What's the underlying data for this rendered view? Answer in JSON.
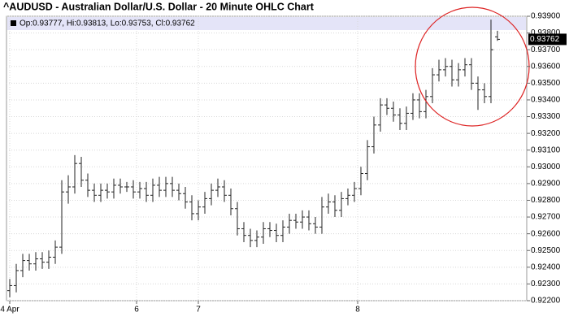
{
  "chart_data": {
    "type": "ohlc",
    "title": "^AUDUSD - Australian Dollar/U.S. Dollar - 20 Minute OHLC Chart",
    "info": "Op:0.93777, Hi:0.93813, Lo:0.93753, Cl:0.93762",
    "color": "#222222",
    "grid": true,
    "ylim": [
      0.922,
      0.939
    ],
    "yticks": [
      {
        "value": 0.922,
        "label": "0.92200"
      },
      {
        "value": 0.923,
        "label": "0.92300"
      },
      {
        "value": 0.924,
        "label": "0.92400"
      },
      {
        "value": 0.925,
        "label": "0.92500"
      },
      {
        "value": 0.926,
        "label": "0.92600"
      },
      {
        "value": 0.927,
        "label": "0.92700"
      },
      {
        "value": 0.928,
        "label": "0.92800"
      },
      {
        "value": 0.929,
        "label": "0.92900"
      },
      {
        "value": 0.93,
        "label": "0.93000"
      },
      {
        "value": 0.931,
        "label": "0.93100"
      },
      {
        "value": 0.932,
        "label": "0.93200"
      },
      {
        "value": 0.933,
        "label": "0.93300"
      },
      {
        "value": 0.934,
        "label": "0.93400"
      },
      {
        "value": 0.935,
        "label": "0.93500"
      },
      {
        "value": 0.936,
        "label": "0.93600"
      },
      {
        "value": 0.937,
        "label": "0.93700"
      },
      {
        "value": 0.938,
        "label": "0.93800"
      },
      {
        "value": 0.939,
        "label": "0.93900"
      }
    ],
    "xlim": [
      -0.5,
      79.5
    ],
    "xticks": [
      {
        "value": 0,
        "label": "4 Apr"
      },
      {
        "value": 19.5,
        "label": "6"
      },
      {
        "value": 29,
        "label": "7"
      },
      {
        "value": 53.5,
        "label": "8"
      }
    ],
    "open": [
      0.9226,
      0.9229,
      0.9238,
      0.9244,
      0.9242,
      0.9245,
      0.9243,
      0.9246,
      0.9252,
      0.9285,
      0.9288,
      0.9302,
      0.9292,
      0.9286,
      0.9283,
      0.9286,
      0.9285,
      0.9289,
      0.9288,
      0.9288,
      0.9285,
      0.9287,
      0.9283,
      0.9289,
      0.9286,
      0.929,
      0.9286,
      0.9284,
      0.9279,
      0.9272,
      0.9276,
      0.9281,
      0.9286,
      0.9288,
      0.9283,
      0.9275,
      0.9263,
      0.9259,
      0.9256,
      0.9258,
      0.9263,
      0.9262,
      0.9259,
      0.9264,
      0.9268,
      0.9267,
      0.927,
      0.9266,
      0.9264,
      0.9276,
      0.9279,
      0.9274,
      0.9281,
      0.9283,
      0.9287,
      0.9296,
      0.9312,
      0.9325,
      0.9337,
      0.9335,
      0.9331,
      0.9326,
      0.9332,
      0.934,
      0.9333,
      0.9342,
      0.9355,
      0.9358,
      0.936,
      0.9352,
      0.9358,
      0.9361,
      0.935,
      0.9346,
      0.9342,
      0.93777
    ],
    "high": [
      0.9233,
      0.9242,
      0.9248,
      0.9248,
      0.9249,
      0.9249,
      0.925,
      0.9256,
      0.9292,
      0.9295,
      0.9307,
      0.9306,
      0.9296,
      0.929,
      0.929,
      0.929,
      0.9293,
      0.9293,
      0.9291,
      0.9292,
      0.9291,
      0.9291,
      0.9293,
      0.9294,
      0.9294,
      0.9294,
      0.929,
      0.9288,
      0.9283,
      0.928,
      0.9285,
      0.929,
      0.9293,
      0.9292,
      0.9287,
      0.9279,
      0.9267,
      0.9263,
      0.9262,
      0.9267,
      0.9267,
      0.9266,
      0.9268,
      0.9272,
      0.9272,
      0.9274,
      0.9274,
      0.927,
      0.9282,
      0.9284,
      0.9283,
      0.9285,
      0.9287,
      0.9291,
      0.93,
      0.9316,
      0.933,
      0.9341,
      0.9341,
      0.9339,
      0.9335,
      0.9336,
      0.9344,
      0.9344,
      0.9346,
      0.9359,
      0.9364,
      0.9365,
      0.9364,
      0.9362,
      0.9365,
      0.9365,
      0.9354,
      0.935,
      0.9388,
      0.93813
    ],
    "low": [
      0.9222,
      0.9225,
      0.9234,
      0.9238,
      0.9238,
      0.9239,
      0.9239,
      0.9242,
      0.9248,
      0.9278,
      0.9284,
      0.9288,
      0.9282,
      0.9279,
      0.9279,
      0.9281,
      0.9281,
      0.9284,
      0.9285,
      0.9281,
      0.9281,
      0.9279,
      0.9279,
      0.9282,
      0.9282,
      0.9282,
      0.928,
      0.9275,
      0.9268,
      0.9268,
      0.9272,
      0.9277,
      0.9282,
      0.9279,
      0.9271,
      0.9259,
      0.9255,
      0.9252,
      0.9252,
      0.9254,
      0.9258,
      0.9255,
      0.9255,
      0.926,
      0.9263,
      0.9263,
      0.9262,
      0.926,
      0.926,
      0.9272,
      0.927,
      0.927,
      0.9277,
      0.9279,
      0.9283,
      0.9292,
      0.9308,
      0.9321,
      0.9331,
      0.9327,
      0.9322,
      0.9322,
      0.9328,
      0.9329,
      0.9329,
      0.9338,
      0.9351,
      0.9354,
      0.9348,
      0.9348,
      0.9354,
      0.9346,
      0.9334,
      0.9338,
      0.9338,
      0.93753
    ],
    "close": [
      0.9229,
      0.9238,
      0.9244,
      0.9242,
      0.9245,
      0.9243,
      0.9246,
      0.9252,
      0.9285,
      0.9288,
      0.9302,
      0.9292,
      0.9286,
      0.9283,
      0.9286,
      0.9285,
      0.9289,
      0.9288,
      0.9288,
      0.9285,
      0.9287,
      0.9283,
      0.9289,
      0.9286,
      0.929,
      0.9286,
      0.9284,
      0.9279,
      0.9272,
      0.9276,
      0.9281,
      0.9286,
      0.9288,
      0.9283,
      0.9275,
      0.9263,
      0.9259,
      0.9256,
      0.9258,
      0.9263,
      0.9262,
      0.9259,
      0.9264,
      0.9268,
      0.9267,
      0.927,
      0.9266,
      0.9264,
      0.9276,
      0.9279,
      0.9274,
      0.9281,
      0.9283,
      0.9287,
      0.9296,
      0.9312,
      0.9325,
      0.9337,
      0.9335,
      0.9331,
      0.9326,
      0.9332,
      0.934,
      0.9333,
      0.9342,
      0.9355,
      0.9358,
      0.936,
      0.9352,
      0.9358,
      0.9361,
      0.935,
      0.9346,
      0.9342,
      0.937,
      0.93762
    ]
  }
}
